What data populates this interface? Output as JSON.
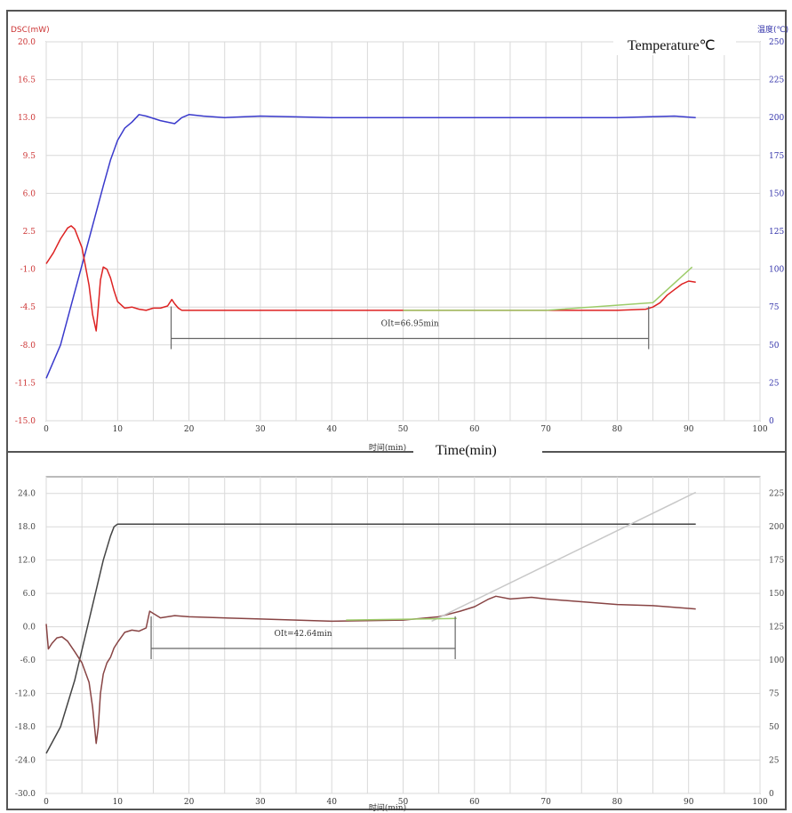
{
  "chart_data": [
    {
      "type": "line",
      "panel": "top",
      "y_left_label": "DSC(mW)",
      "y_right_label": "温度(℃)",
      "xlabel": "时间(min)",
      "xlim": [
        0,
        100
      ],
      "x_ticks": [
        0,
        10,
        20,
        30,
        40,
        50,
        60,
        70,
        80,
        90,
        100
      ],
      "y_left_ticks": [
        "-15.0",
        "-11.5",
        "-8.0",
        "-4.5",
        "-1.0",
        "2.5",
        "6.0",
        "9.5",
        "13.0",
        "16.5",
        "20.0"
      ],
      "y_left_range": [
        -15,
        20
      ],
      "y_right_ticks": [
        "0",
        "25",
        "50",
        "75",
        "100",
        "125",
        "150",
        "175",
        "200",
        "225",
        "250"
      ],
      "y_right_range": [
        0,
        250
      ],
      "grid": true,
      "colors": {
        "left_axis": "#cc3333",
        "right_axis": "#3333aa"
      },
      "series": [
        {
          "axis": "right",
          "color": "#3a3acc",
          "x": [
            0,
            2,
            4,
            6,
            8,
            9,
            10,
            11,
            12,
            13,
            14,
            16,
            18,
            19,
            20,
            22,
            25,
            30,
            40,
            50,
            60,
            70,
            80,
            88,
            91
          ],
          "y": [
            28,
            50,
            85,
            120,
            155,
            172,
            185,
            193,
            197,
            202,
            201,
            198,
            196,
            200,
            202,
            201,
            200,
            201,
            200,
            200,
            200,
            200,
            200,
            201,
            200
          ]
        },
        {
          "axis": "left",
          "color": "#dd2222",
          "x": [
            0,
            1,
            2,
            3,
            3.5,
            4,
            5,
            6,
            6.5,
            7,
            7.3,
            7.6,
            8,
            8.5,
            9,
            9.5,
            10,
            11,
            12,
            13,
            14,
            15,
            16,
            17,
            17.6,
            18,
            18.5,
            19,
            20,
            25,
            30,
            40,
            50,
            60,
            70,
            75,
            80,
            84,
            85,
            86,
            87,
            88,
            89,
            90,
            91
          ],
          "y": [
            -0.5,
            0.5,
            1.8,
            2.8,
            3.0,
            2.7,
            1.0,
            -2.5,
            -5.2,
            -6.7,
            -4.5,
            -2.0,
            -0.8,
            -1.0,
            -1.8,
            -3.0,
            -4.0,
            -4.6,
            -4.5,
            -4.7,
            -4.8,
            -4.6,
            -4.6,
            -4.4,
            -3.8,
            -4.2,
            -4.6,
            -4.8,
            -4.8,
            -4.8,
            -4.8,
            -4.8,
            -4.8,
            -4.8,
            -4.8,
            -4.8,
            -4.8,
            -4.7,
            -4.5,
            -4.1,
            -3.4,
            -2.9,
            -2.4,
            -2.1,
            -2.2
          ]
        },
        {
          "axis": "left",
          "color": "#9dcc6a",
          "x": [
            50,
            70,
            85,
            90.5
          ],
          "y": [
            -4.8,
            -4.8,
            -4.1,
            -0.8
          ]
        }
      ],
      "annotations": [
        {
          "text": "OIt=66.95min",
          "x_start": 17.5,
          "x_end": 84.4,
          "y": -7.4
        }
      ],
      "caption": "Temperature℃"
    },
    {
      "type": "line",
      "panel": "bottom",
      "xlabel": "时间(min)",
      "xlim": [
        0,
        100
      ],
      "x_ticks": [
        0,
        10,
        20,
        30,
        40,
        50,
        60,
        70,
        80,
        90,
        100
      ],
      "y_left_ticks": [
        "-30.0",
        "-24.0",
        "-18.0",
        "-12.0",
        "-6.0",
        "0.0",
        "6.0",
        "12.0",
        "18.0",
        "24.0"
      ],
      "y_left_range": [
        -30,
        27
      ],
      "y_right_ticks": [
        "0",
        "25",
        "50",
        "75",
        "100",
        "125",
        "150",
        "175",
        "200",
        "225"
      ],
      "y_right_range": [
        0,
        237.5
      ],
      "grid": true,
      "series": [
        {
          "axis": "right",
          "color": "#444444",
          "x": [
            0,
            2,
            4,
            6,
            8,
            9,
            9.5,
            10,
            11,
            20,
            40,
            60,
            80,
            91
          ],
          "y": [
            30,
            50,
            85,
            130,
            175,
            193,
            200,
            202,
            202,
            202,
            202,
            202,
            202,
            202
          ]
        },
        {
          "axis": "left",
          "color": "#884444",
          "x": [
            0,
            0.3,
            0.8,
            1.5,
            2.2,
            3,
            4,
            5,
            6,
            6.5,
            7,
            7.3,
            7.6,
            8,
            8.5,
            9,
            9.5,
            10,
            11,
            12,
            13,
            14,
            14.5,
            15,
            16,
            18,
            20,
            30,
            40,
            50,
            55,
            58,
            60,
            62,
            63,
            65,
            68,
            70,
            75,
            80,
            85,
            88,
            91
          ],
          "y": [
            0.5,
            -4.0,
            -3.0,
            -2.0,
            -1.8,
            -2.6,
            -4.5,
            -6.5,
            -10.0,
            -14.5,
            -21.0,
            -18.0,
            -12.0,
            -8.5,
            -6.5,
            -5.5,
            -3.8,
            -2.8,
            -1.0,
            -0.6,
            -0.8,
            -0.2,
            2.8,
            2.4,
            1.6,
            2.0,
            1.8,
            1.4,
            1.0,
            1.2,
            1.8,
            2.8,
            3.6,
            5.0,
            5.5,
            5.0,
            5.3,
            5.0,
            4.5,
            4.0,
            3.8,
            3.5,
            3.2
          ]
        },
        {
          "axis": "left",
          "color": "#c8c8c8",
          "x": [
            54,
            91
          ],
          "y": [
            1.0,
            24.2
          ]
        },
        {
          "axis": "left",
          "color": "#9dcc6a",
          "x": [
            42,
            57.5
          ],
          "y": [
            1.2,
            1.5
          ]
        }
      ],
      "annotations": [
        {
          "text": "OIt=42.64min",
          "x_start": 14.7,
          "x_end": 57.3,
          "y": -3.9
        }
      ],
      "caption": "Time(min)"
    }
  ]
}
